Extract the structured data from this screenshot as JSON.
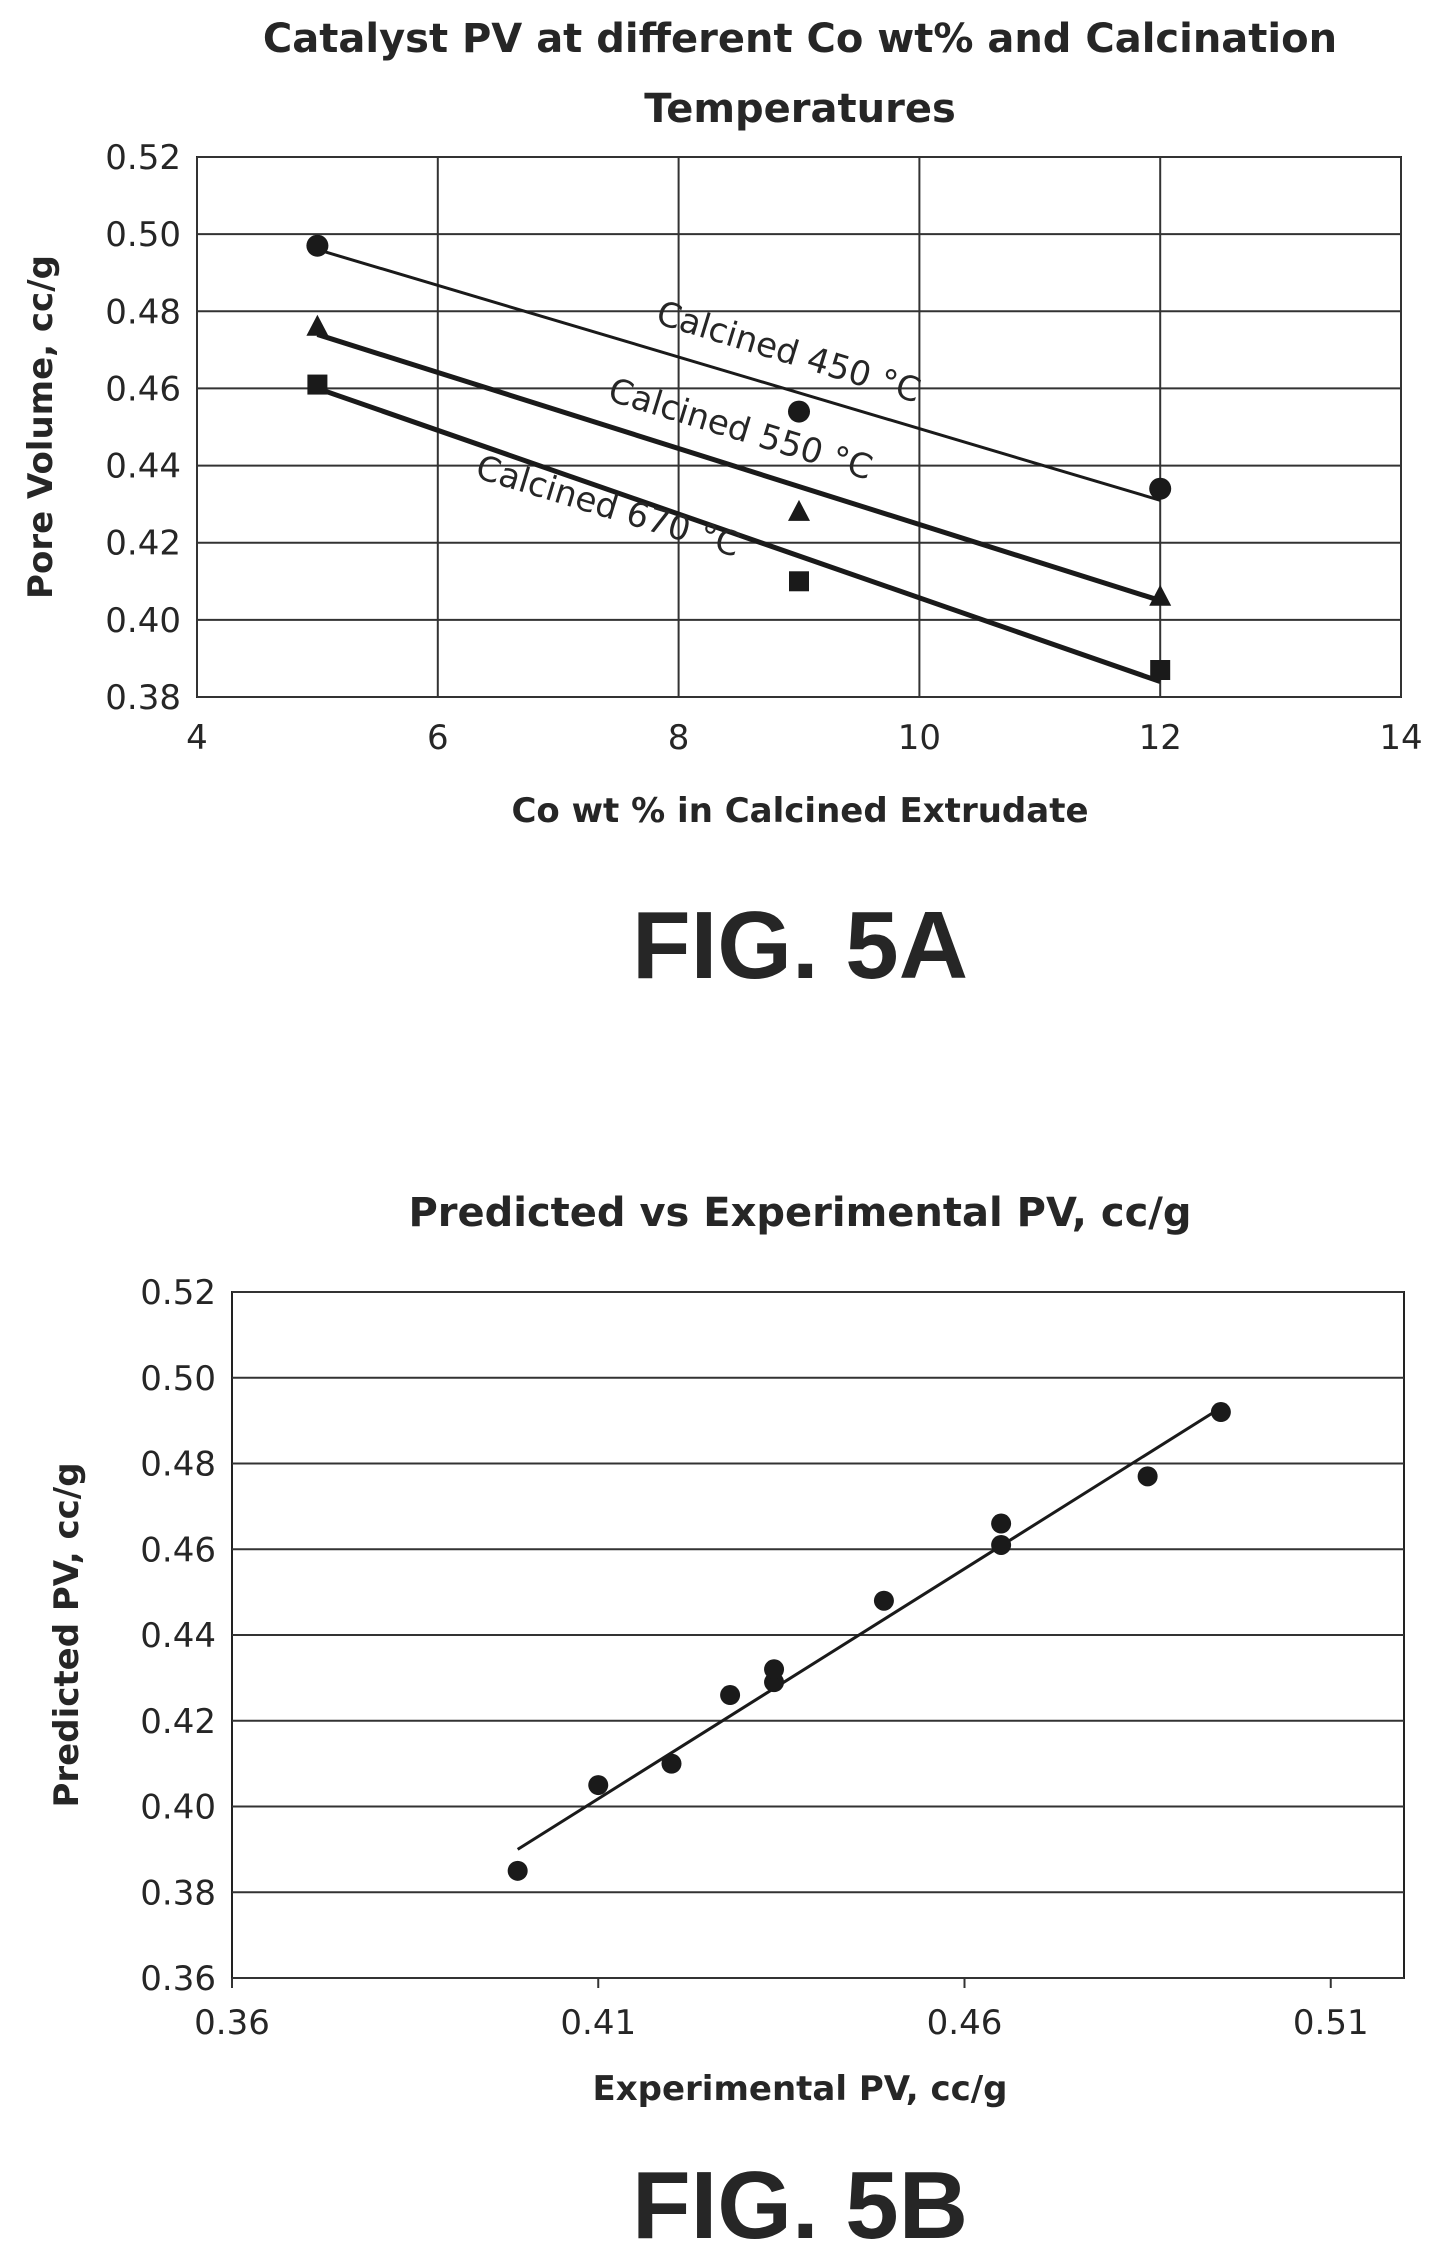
{
  "chart_data": [
    {
      "type": "scatter",
      "title_line1": "Catalyst PV at different Co wt% and Calcination",
      "title_line2": "Temperatures",
      "xlabel": "Co wt % in Calcined Extrudate",
      "ylabel": "Pore Volume, cc/g",
      "xlim": [
        4,
        14
      ],
      "ylim": [
        0.38,
        0.52
      ],
      "x_ticks": [
        "4",
        "6",
        "8",
        "10",
        "12",
        "14"
      ],
      "y_ticks": [
        "0.38",
        "0.40",
        "0.42",
        "0.44",
        "0.46",
        "0.48",
        "0.50",
        "0.52"
      ],
      "grid": true,
      "series": [
        {
          "marker": "circle",
          "x": [
            5,
            9,
            12
          ],
          "y": [
            0.497,
            0.454,
            0.434
          ],
          "trend": [
            [
              5,
              0.496
            ],
            [
              12,
              0.431
            ]
          ],
          "trend_width": 3
        },
        {
          "marker": "triangle",
          "x": [
            5,
            9,
            12
          ],
          "y": [
            0.476,
            0.428,
            0.406
          ],
          "trend": [
            [
              5,
              0.474
            ],
            [
              12,
              0.405
            ]
          ],
          "trend_width": 5
        },
        {
          "marker": "square",
          "x": [
            5,
            9,
            12
          ],
          "y": [
            0.461,
            0.41,
            0.387
          ],
          "trend": [
            [
              5,
              0.46
            ],
            [
              12,
              0.384
            ]
          ],
          "trend_width": 5
        }
      ],
      "annotations": [
        {
          "text": "Calcined 450 °C",
          "x": 7.8,
          "y": 0.477,
          "angle": 17
        },
        {
          "text": "Calcined 550 °C",
          "x": 7.4,
          "y": 0.457,
          "angle": 17
        },
        {
          "text": "Calcined 670 °C",
          "x": 6.3,
          "y": 0.437,
          "angle": 17
        }
      ],
      "figure_label": "FIG. 5A"
    },
    {
      "type": "scatter",
      "title": "Predicted vs Experimental PV, cc/g",
      "xlabel": "Experimental PV, cc/g",
      "ylabel": "Predicted PV, cc/g",
      "xlim": [
        0.36,
        0.52
      ],
      "ylim": [
        0.36,
        0.52
      ],
      "x_ticks": [
        "0.36",
        "0.41",
        "0.46",
        "0.51"
      ],
      "x_tick_values": [
        0.36,
        0.41,
        0.46,
        0.51
      ],
      "y_ticks": [
        "0.36",
        "0.38",
        "0.40",
        "0.42",
        "0.44",
        "0.46",
        "0.48",
        "0.50",
        "0.52"
      ],
      "grid": "horizontal",
      "x": [
        0.399,
        0.41,
        0.42,
        0.428,
        0.434,
        0.434,
        0.449,
        0.465,
        0.465,
        0.485,
        0.495
      ],
      "y": [
        0.385,
        0.405,
        0.41,
        0.426,
        0.429,
        0.432,
        0.448,
        0.461,
        0.466,
        0.477,
        0.492
      ],
      "trend": [
        [
          0.399,
          0.39
        ],
        [
          0.495,
          0.493
        ]
      ],
      "figure_label": "FIG. 5B"
    }
  ]
}
